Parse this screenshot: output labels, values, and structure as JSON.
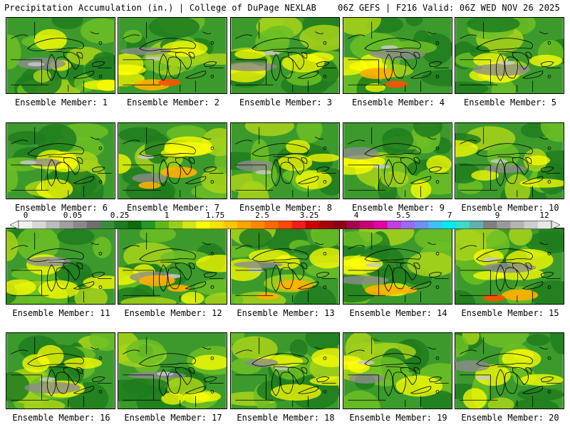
{
  "header": {
    "left": "Precipitation Accumulation (in.) | College of DuPage NEXLAB",
    "right": "06Z GEFS | F216 Valid: 06Z WED NOV 26 2025"
  },
  "colorbar": {
    "labels": [
      "0",
      "0.05",
      "0.25",
      "1",
      "1.75",
      "2.5",
      "3.25",
      "4",
      "5.5",
      "7",
      "9",
      "12"
    ],
    "colors": [
      "#f0f0f0",
      "#d8d8d8",
      "#bcbcbc",
      "#a0a0a0",
      "#888888",
      "#6e6e6e",
      "#3c8c3c",
      "#1e7d1e",
      "#0b6d0b",
      "#229922",
      "#5fb81c",
      "#9acd1a",
      "#cfe41a",
      "#ffff00",
      "#ffe000",
      "#ffc400",
      "#ffa400",
      "#ff8800",
      "#ff6800",
      "#ff4800",
      "#ee1c1c",
      "#cc0000",
      "#a80000",
      "#8c0014",
      "#aa0050",
      "#c8007a",
      "#e000a8",
      "#c040e0",
      "#9a6af0",
      "#7090f8",
      "#40c0f8",
      "#00e8f0",
      "#40d8c8",
      "#60b0b0",
      "#808080",
      "#9a9a9a",
      "#b4b4b4",
      "#cecece",
      "#e8e8e8"
    ]
  },
  "panels": [
    {
      "label": "Ensemble Member: 1"
    },
    {
      "label": "Ensemble Member: 2"
    },
    {
      "label": "Ensemble Member: 3"
    },
    {
      "label": "Ensemble Member: 4"
    },
    {
      "label": "Ensemble Member: 5"
    },
    {
      "label": "Ensemble Member: 6"
    },
    {
      "label": "Ensemble Member: 7"
    },
    {
      "label": "Ensemble Member: 8"
    },
    {
      "label": "Ensemble Member: 9"
    },
    {
      "label": "Ensemble Member: 10"
    },
    {
      "label": "Ensemble Member: 11"
    },
    {
      "label": "Ensemble Member: 12"
    },
    {
      "label": "Ensemble Member: 13"
    },
    {
      "label": "Ensemble Member: 14"
    },
    {
      "label": "Ensemble Member: 15"
    },
    {
      "label": "Ensemble Member: 16"
    },
    {
      "label": "Ensemble Member: 17"
    },
    {
      "label": "Ensemble Member: 18"
    },
    {
      "label": "Ensemble Member: 19"
    },
    {
      "label": "Ensemble Member: 20"
    }
  ]
}
